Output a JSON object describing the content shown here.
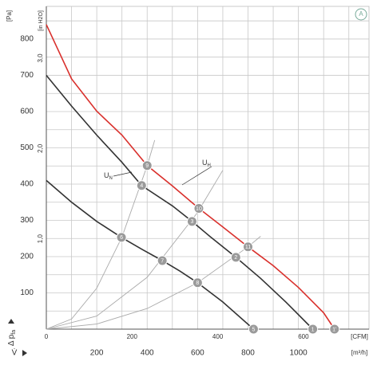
{
  "chart_data": {
    "type": "line",
    "ylabel": "[Pa]",
    "y2label": "[in H2O]",
    "xlabel": "[m³/h]",
    "x2label": "[CFM]",
    "ylabel_symbol": {
      "text": "Δ p",
      "sub": "fa"
    },
    "xlabel_symbol": "V̇",
    "badge": "A",
    "xlim": [
      0,
      1280
    ],
    "ylim": [
      0,
      890
    ],
    "xticks": [
      200,
      400,
      600,
      800,
      1000
    ],
    "yticks": [
      100,
      200,
      300,
      400,
      500,
      600,
      700,
      800
    ],
    "x2lim": [
      0,
      753
    ],
    "x2ticks": [
      0,
      200,
      400,
      600
    ],
    "y2lim": [
      0,
      3.573
    ],
    "y2ticks": [
      {
        "value": 1,
        "label": "1,0"
      },
      {
        "value": 2,
        "label": "2,0"
      },
      {
        "value": 3,
        "label": "3,0"
      }
    ],
    "xgrid": [
      100,
      200,
      300,
      400,
      500,
      600,
      700,
      800,
      900,
      1000,
      1100,
      1200
    ],
    "ygrid": [
      50,
      100,
      150,
      200,
      250,
      300,
      350,
      400,
      450,
      500,
      550,
      600,
      650,
      700,
      750,
      800,
      850
    ],
    "series": [
      {
        "color": "#d9302c",
        "x": [
          0,
          100,
          200,
          300,
          400,
          500,
          605,
          700,
          800,
          900,
          1000,
          1100,
          1143
        ],
        "values": [
          840,
          690,
          601,
          535,
          451,
          395,
          333,
          282,
          227,
          175,
          115,
          45,
          0
        ],
        "points": {
          "x": [
            400,
            605,
            800,
            1143
          ],
          "values": [
            451,
            333,
            227,
            0
          ],
          "labels": [
            "9",
            "10",
            "11",
            "1'"
          ]
        }
      },
      {
        "color": "#333333",
        "x": [
          0,
          100,
          200,
          300,
          378,
          500,
          578,
          650,
          752,
          850,
          950,
          1057
        ],
        "values": [
          700,
          615,
          535,
          460,
          396,
          340,
          297,
          255,
          198,
          140,
          75,
          0
        ],
        "points": {
          "x": [
            378,
            578,
            752,
            1057
          ],
          "values": [
            396,
            297,
            198,
            0
          ],
          "labels": [
            "4",
            "3",
            "2",
            "1"
          ]
        }
      },
      {
        "color": "#333333",
        "x": [
          0,
          100,
          200,
          298,
          380,
          460,
          530,
          600,
          700,
          822
        ],
        "values": [
          410,
          350,
          297,
          253,
          220,
          189,
          160,
          128,
          75,
          0
        ],
        "points": {
          "x": [
            298,
            460,
            600,
            822
          ],
          "values": [
            253,
            189,
            128,
            0
          ],
          "labels": [
            "6",
            "7",
            "8",
            "5"
          ]
        }
      }
    ],
    "system_curves": [
      {
        "color": "#aaaaaa",
        "x": [
          0,
          100,
          200,
          300,
          400,
          430
        ],
        "values": [
          0,
          28,
          113,
          254,
          451,
          521
        ]
      },
      {
        "color": "#aaaaaa",
        "x": [
          0,
          200,
          400,
          600,
          700
        ],
        "values": [
          0,
          36,
          143,
          322,
          438
        ]
      },
      {
        "color": "#aaaaaa",
        "x": [
          0,
          200,
          400,
          600,
          800,
          850
        ],
        "values": [
          0,
          14,
          57,
          128,
          227,
          256
        ]
      }
    ],
    "annotations": [
      {
        "text": "U",
        "sub": "N"
      },
      {
        "text": "U",
        "sub": "H"
      }
    ]
  }
}
